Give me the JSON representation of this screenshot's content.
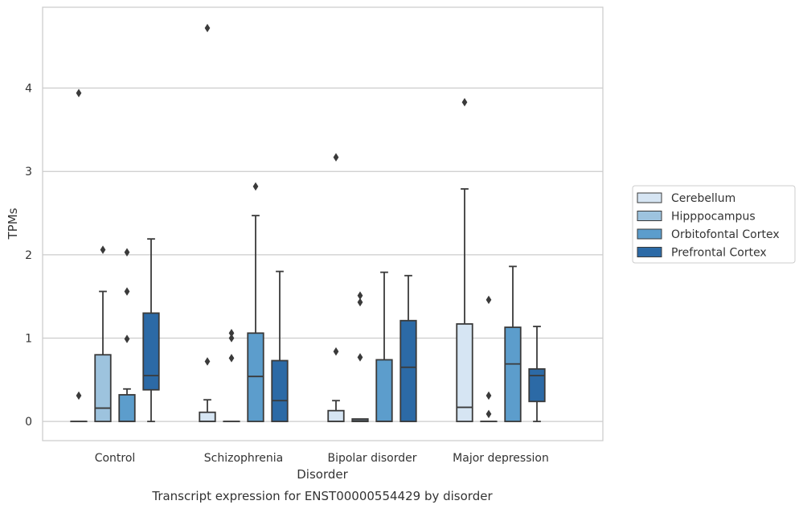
{
  "chart_data": {
    "type": "box",
    "caption": "Transcript expression for ENST00000554429 by disorder",
    "xlabel": "Disorder",
    "ylabel": "TPMs",
    "ylim": [
      -0.23,
      4.97
    ],
    "yticks": [
      0,
      1,
      2,
      3,
      4
    ],
    "grid": "horizontal",
    "legend_position": "right",
    "categories": [
      "Control",
      "Schizophrenia",
      "Bipolar disorder",
      "Major depression"
    ],
    "series": [
      {
        "name": "Cerebellum",
        "color": "#d6e5f3",
        "boxes": [
          {
            "q1": 0,
            "median": 0,
            "q3": 0,
            "whisker_low": 0,
            "whisker_high": 0,
            "outliers": [
              0.31,
              3.94
            ]
          },
          {
            "q1": 0,
            "median": 0,
            "q3": 0.11,
            "whisker_low": 0,
            "whisker_high": 0.26,
            "outliers": [
              0.72,
              4.72
            ]
          },
          {
            "q1": 0,
            "median": 0,
            "q3": 0.13,
            "whisker_low": 0,
            "whisker_high": 0.25,
            "outliers": [
              0.84,
              3.17
            ]
          },
          {
            "q1": 0,
            "median": 0.17,
            "q3": 1.17,
            "whisker_low": 0,
            "whisker_high": 2.79,
            "outliers": [
              3.83
            ]
          }
        ]
      },
      {
        "name": "Hipppocampus",
        "color": "#9dc3de",
        "boxes": [
          {
            "q1": 0,
            "median": 0.16,
            "q3": 0.8,
            "whisker_low": 0,
            "whisker_high": 1.56,
            "outliers": [
              2.06
            ]
          },
          {
            "q1": 0,
            "median": 0,
            "q3": 0,
            "whisker_low": 0,
            "whisker_high": 0,
            "outliers": [
              0.76,
              1.0,
              1.06
            ]
          },
          {
            "q1": 0,
            "median": 0.01,
            "q3": 0.03,
            "whisker_low": 0,
            "whisker_high": 0.03,
            "outliers": [
              0.77,
              1.43,
              1.51
            ]
          },
          {
            "q1": 0,
            "median": 0,
            "q3": 0,
            "whisker_low": 0,
            "whisker_high": 0,
            "outliers": [
              0.09,
              0.31,
              1.46
            ]
          }
        ]
      },
      {
        "name": "Orbitofontal Cortex",
        "color": "#5c9dcc",
        "boxes": [
          {
            "q1": 0,
            "median": 0,
            "q3": 0.32,
            "whisker_low": 0,
            "whisker_high": 0.39,
            "outliers": [
              0.99,
              1.56,
              2.03
            ]
          },
          {
            "q1": 0,
            "median": 0.54,
            "q3": 1.06,
            "whisker_low": 0,
            "whisker_high": 2.47,
            "outliers": [
              2.82
            ]
          },
          {
            "q1": 0,
            "median": 0,
            "q3": 0.74,
            "whisker_low": 0,
            "whisker_high": 1.79,
            "outliers": []
          },
          {
            "q1": 0,
            "median": 0.69,
            "q3": 1.13,
            "whisker_low": 0,
            "whisker_high": 1.86,
            "outliers": []
          }
        ]
      },
      {
        "name": "Prefrontal Cortex",
        "color": "#2c6aa6",
        "boxes": [
          {
            "q1": 0.38,
            "median": 0.55,
            "q3": 1.3,
            "whisker_low": 0,
            "whisker_high": 2.19,
            "outliers": []
          },
          {
            "q1": 0,
            "median": 0.25,
            "q3": 0.73,
            "whisker_low": 0,
            "whisker_high": 1.8,
            "outliers": []
          },
          {
            "q1": 0,
            "median": 0.65,
            "q3": 1.21,
            "whisker_low": 0,
            "whisker_high": 1.75,
            "outliers": []
          },
          {
            "q1": 0.24,
            "median": 0.55,
            "q3": 0.63,
            "whisker_low": 0,
            "whisker_high": 1.14,
            "outliers": []
          }
        ]
      }
    ]
  }
}
